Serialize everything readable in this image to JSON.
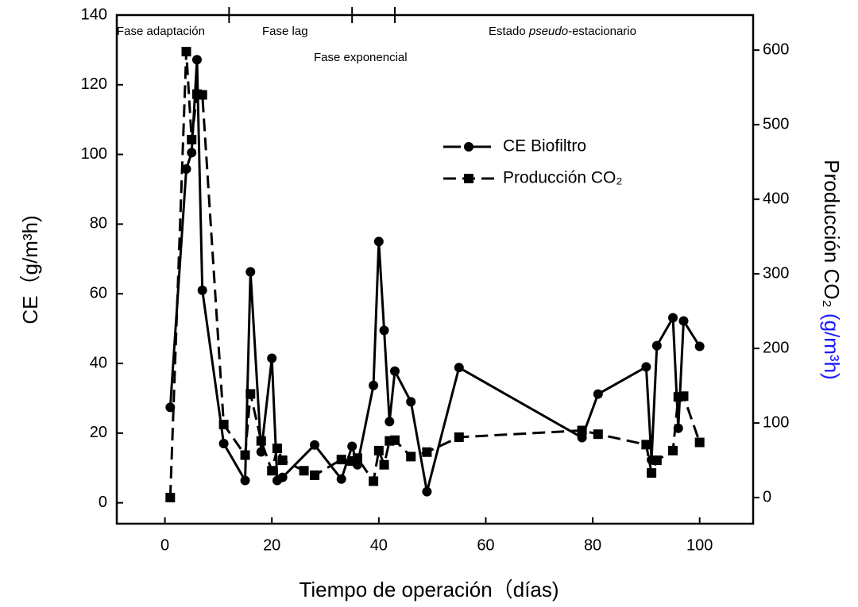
{
  "chart_data": {
    "type": "line",
    "xlabel": "Tiempo de operación（días)",
    "ylabel": "CE（g/m³h)",
    "y2label": [
      "Producción CO₂",
      "(g/m³h)"
    ],
    "y2label_colors": [
      "#000000",
      "#1a1aff"
    ],
    "annotations": [
      "Fase adaptación",
      "Fase lag",
      "Fase exponencial",
      [
        "Estado ",
        "pseudo",
        "-estacionario"
      ]
    ],
    "phase_boundaries": [
      12,
      35,
      43
    ],
    "xlim": [
      -9,
      110
    ],
    "xticks": [
      0,
      20,
      40,
      60,
      80,
      100
    ],
    "ylim": [
      -6,
      140
    ],
    "yticks": [
      0,
      20,
      40,
      60,
      80,
      100,
      120,
      140
    ],
    "y2lim": [
      -35,
      647
    ],
    "y2ticks": [
      0,
      100,
      200,
      300,
      400,
      500,
      600
    ],
    "series": [
      {
        "name": "CE Biofiltro",
        "color": "#000000",
        "marker": "circle",
        "dash": "solid",
        "x": [
          1,
          4,
          5,
          6,
          7,
          11,
          15,
          16,
          18,
          20,
          21,
          22,
          28,
          33,
          35,
          36,
          39,
          40,
          41,
          42,
          43,
          46,
          49,
          55,
          78,
          81,
          90,
          91,
          92,
          95,
          96,
          97,
          100
        ],
        "values": [
          27.4,
          95.8,
          100.5,
          127.2,
          61,
          17,
          6.4,
          66.3,
          14.6,
          41.5,
          6.4,
          7.3,
          16.6,
          6.8,
          16.2,
          10.9,
          33.7,
          75,
          49.5,
          23.3,
          37.8,
          29,
          3.2,
          38.8,
          18.7,
          31.2,
          39,
          12.3,
          45.1,
          53.1,
          21.4,
          52.2,
          44.9
        ]
      },
      {
        "name": "Producción CO₂",
        "color": "#000000",
        "marker": "square",
        "dash": "dashed",
        "axis": "y2",
        "x": [
          1,
          4,
          5,
          6,
          7,
          11,
          15,
          16,
          18,
          20,
          21,
          22,
          26,
          28,
          33,
          35,
          36,
          39,
          40,
          41,
          42,
          43,
          46,
          49,
          55,
          78,
          81,
          90,
          91,
          92,
          95,
          96,
          97,
          100
        ],
        "values": [
          0,
          598,
          480,
          541,
          540,
          98,
          57,
          139,
          76,
          36,
          66,
          50,
          36,
          30,
          51,
          49,
          53,
          22,
          63,
          44,
          76,
          77,
          55,
          61,
          81,
          90,
          85,
          71,
          33,
          50,
          63,
          135,
          136,
          74
        ]
      }
    ],
    "legend": "upper-right"
  }
}
